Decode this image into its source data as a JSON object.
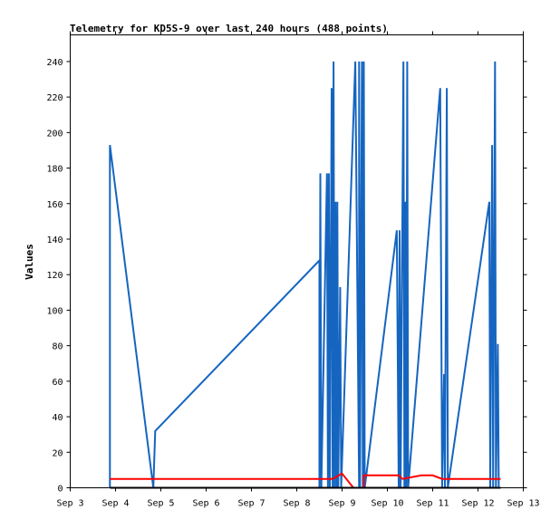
{
  "chart_data": {
    "type": "line",
    "title": "Telemetry for KD5S-9 over last 240 hours (488 points)",
    "xlabel": "",
    "ylabel": "Values",
    "ylim": [
      0,
      255
    ],
    "xlim": [
      "2021-09-03",
      "2021-09-13"
    ],
    "x_ticks": [
      "Sep 3",
      "Sep 4",
      "Sep 5",
      "Sep 6",
      "Sep 7",
      "Sep 8",
      "Sep 9",
      "Sep 10",
      "Sep 11",
      "Sep 12",
      "Sep 13"
    ],
    "y_ticks": [
      0,
      20,
      40,
      60,
      80,
      100,
      120,
      140,
      160,
      180,
      200,
      220,
      240
    ],
    "grid": false,
    "colors": {
      "blue_series": "#1565c0",
      "red_series": "#ff0000",
      "black_series": "#000000"
    },
    "series": [
      {
        "color": "blue",
        "points": [
          [
            "2021-09-03T21:00",
            0
          ],
          [
            "2021-09-03T21:00",
            193
          ],
          [
            "2021-09-04T20:00",
            0
          ],
          [
            "2021-09-04T21:00",
            32
          ],
          [
            "2021-09-08T12:00",
            128
          ],
          [
            "2021-09-08T12:00",
            0
          ],
          [
            "2021-09-08T12:30",
            177
          ],
          [
            "2021-09-08T13:00",
            0
          ],
          [
            "2021-09-08T16:00",
            177
          ],
          [
            "2021-09-08T16:30",
            0
          ],
          [
            "2021-09-08T17:00",
            177
          ],
          [
            "2021-09-08T17:30",
            0
          ],
          [
            "2021-09-08T18:30",
            225
          ],
          [
            "2021-09-08T19:00",
            0
          ],
          [
            "2021-09-08T19:30",
            240
          ],
          [
            "2021-09-08T20:00",
            0
          ],
          [
            "2021-09-08T20:30",
            161
          ],
          [
            "2021-09-08T21:00",
            0
          ],
          [
            "2021-09-08T21:30",
            161
          ],
          [
            "2021-09-08T22:00",
            0
          ],
          [
            "2021-09-08T23:00",
            113
          ],
          [
            "2021-09-08T23:30",
            0
          ],
          [
            "2021-09-09T07:00",
            240
          ],
          [
            "2021-09-09T09:00",
            0
          ],
          [
            "2021-09-09T09:00",
            240
          ],
          [
            "2021-09-09T09:30",
            0
          ],
          [
            "2021-09-09T10:30",
            240
          ],
          [
            "2021-09-09T11:00",
            0
          ],
          [
            "2021-09-09T11:30",
            240
          ],
          [
            "2021-09-09T12:00",
            0
          ],
          [
            "2021-09-10T05:00",
            145
          ],
          [
            "2021-09-10T06:00",
            0
          ],
          [
            "2021-09-10T06:30",
            145
          ],
          [
            "2021-09-10T07:00",
            0
          ],
          [
            "2021-09-10T08:30",
            240
          ],
          [
            "2021-09-10T09:00",
            0
          ],
          [
            "2021-09-10T09:30",
            161
          ],
          [
            "2021-09-10T10:00",
            0
          ],
          [
            "2021-09-10T10:30",
            240
          ],
          [
            "2021-09-10T11:00",
            0
          ],
          [
            "2021-09-11T04:00",
            225
          ],
          [
            "2021-09-11T05:00",
            0
          ],
          [
            "2021-09-11T06:00",
            64
          ],
          [
            "2021-09-11T06:30",
            0
          ],
          [
            "2021-09-11T07:30",
            225
          ],
          [
            "2021-09-11T08:00",
            0
          ],
          [
            "2021-09-12T06:00",
            161
          ],
          [
            "2021-09-12T06:30",
            0
          ],
          [
            "2021-09-12T07:30",
            193
          ],
          [
            "2021-09-12T08:00",
            0
          ],
          [
            "2021-09-12T09:00",
            240
          ],
          [
            "2021-09-12T09:30",
            0
          ],
          [
            "2021-09-12T10:30",
            81
          ],
          [
            "2021-09-12T11:00",
            0
          ]
        ]
      },
      {
        "color": "red",
        "points": [
          [
            "2021-09-03T21:00",
            5
          ],
          [
            "2021-09-08T12:00",
            5
          ],
          [
            "2021-09-08T19:00",
            5
          ],
          [
            "2021-09-09T00:00",
            8
          ],
          [
            "2021-09-09T06:00",
            0
          ],
          [
            "2021-09-09T11:30",
            0
          ],
          [
            "2021-09-09T11:30",
            7
          ],
          [
            "2021-09-10T06:00",
            7
          ],
          [
            "2021-09-10T08:00",
            5
          ],
          [
            "2021-09-10T18:00",
            7
          ],
          [
            "2021-09-11T00:00",
            7
          ],
          [
            "2021-09-11T05:00",
            5
          ],
          [
            "2021-09-12T06:00",
            5
          ],
          [
            "2021-09-12T12:00",
            5
          ]
        ]
      },
      {
        "color": "black",
        "points": [
          [
            "2021-09-03T21:00",
            0
          ],
          [
            "2021-09-12T12:00",
            0
          ]
        ]
      }
    ]
  }
}
